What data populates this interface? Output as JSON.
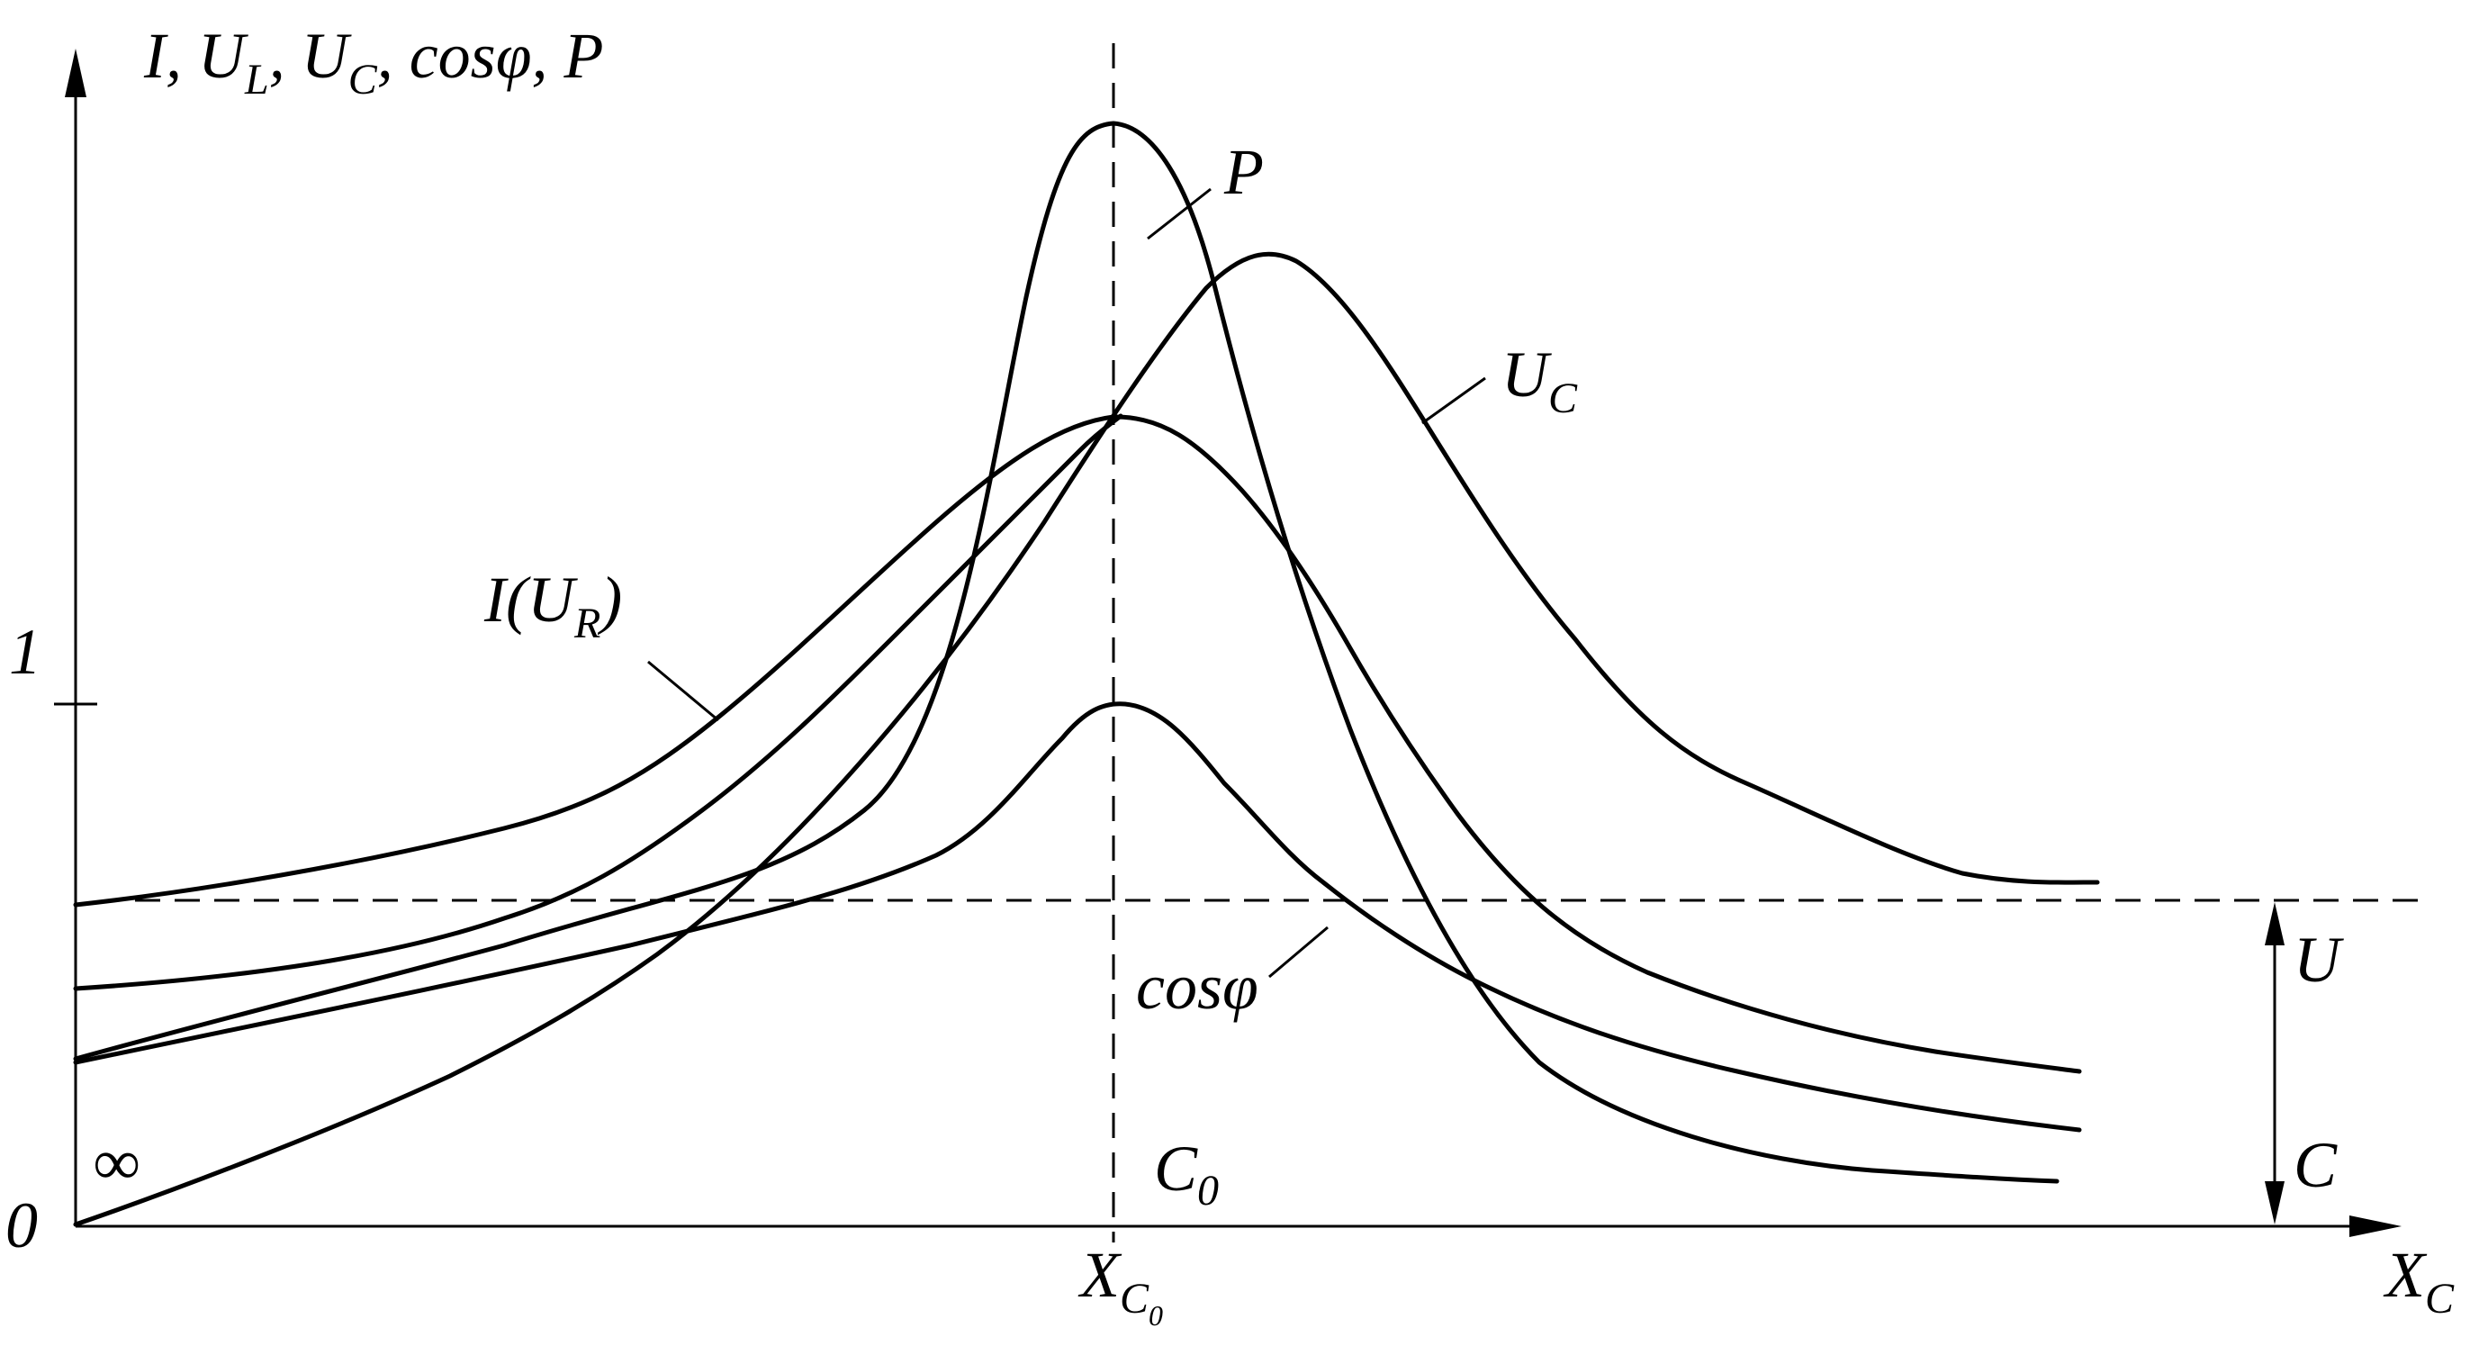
{
  "axes": {
    "y_label": {
      "parts": [
        "I, U",
        "L",
        ", U",
        "C",
        ", cos",
        "φ",
        ", P"
      ]
    },
    "x_label": {
      "main": "X",
      "sub": "C"
    },
    "origin": "0",
    "tick_one": "1",
    "infinity": "∞"
  },
  "resonance": {
    "x_tick": {
      "main": "X",
      "sub": "C",
      "subsub": "0"
    },
    "c0": {
      "main": "C",
      "sub": "0"
    }
  },
  "curve_labels": {
    "P": "P",
    "UC": {
      "main": "U",
      "sub": "C"
    },
    "I": {
      "main": "I(U",
      "sub": "R",
      "close": ")"
    },
    "cosphi": "cosφ"
  },
  "right_scale": {
    "top": "U",
    "bottom": "C"
  }
}
